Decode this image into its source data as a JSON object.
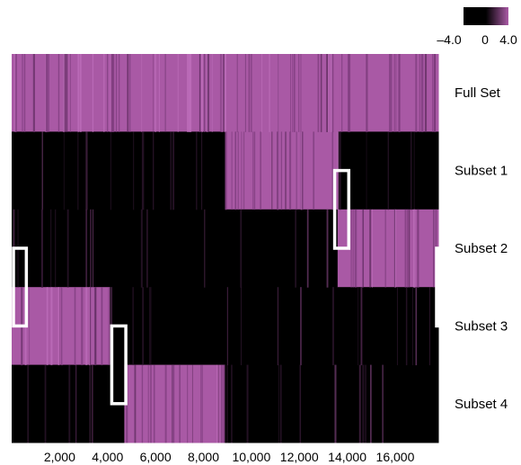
{
  "chart_data": {
    "type": "heatmap",
    "title": "",
    "xlabel": "",
    "ylabel": "",
    "rows": [
      "Full Set",
      "Subset 1",
      "Subset 2",
      "Subset 3",
      "Subset 4"
    ],
    "x_ticks": [
      "2,000",
      "4,000",
      "6,000",
      "8,000",
      "10,000",
      "12,000",
      "14,000",
      "16,000"
    ],
    "x_tick_values": [
      2000,
      4000,
      6000,
      8000,
      10000,
      12000,
      14000,
      16000
    ],
    "xlim": [
      0,
      17800
    ],
    "color_scale": {
      "min": -4.0,
      "max": 4.0,
      "low_color": "#000000",
      "mid_color": "#000000",
      "high_color": "#a959a5"
    },
    "legend_labels": [
      "–4.0",
      "0",
      "4.0"
    ],
    "grid": false,
    "legend_position": "top-right",
    "segments": [
      {
        "row": "Full Set",
        "start": 0,
        "end": 17800,
        "value": 4.0
      },
      {
        "row": "Subset 1",
        "start": 0,
        "end": 8900,
        "value": -4.0
      },
      {
        "row": "Subset 1",
        "start": 8900,
        "end": 13600,
        "value": 4.0
      },
      {
        "row": "Subset 1",
        "start": 13600,
        "end": 17800,
        "value": -4.0
      },
      {
        "row": "Subset 2",
        "start": 0,
        "end": 13600,
        "value": -4.0
      },
      {
        "row": "Subset 2",
        "start": 13600,
        "end": 17800,
        "value": 4.0
      },
      {
        "row": "Subset 3",
        "start": 0,
        "end": 4100,
        "value": 4.0
      },
      {
        "row": "Subset 3",
        "start": 4100,
        "end": 17800,
        "value": -4.0
      },
      {
        "row": "Subset 4",
        "start": 0,
        "end": 4700,
        "value": -4.0
      },
      {
        "row": "Subset 4",
        "start": 4700,
        "end": 8900,
        "value": 4.0
      },
      {
        "row": "Subset 4",
        "start": 8900,
        "end": 17800,
        "value": -4.0
      }
    ],
    "highlight_boxes": [
      {
        "x_start": 0,
        "x_end": 650,
        "rows": [
          "Subset 2",
          "Subset 3"
        ],
        "color": "#ffffff"
      },
      {
        "x_start": 4100,
        "x_end": 4800,
        "rows": [
          "Subset 3",
          "Subset 4"
        ],
        "color": "#ffffff"
      },
      {
        "x_start": 13400,
        "x_end": 14100,
        "rows": [
          "Subset 1",
          "Subset 2"
        ],
        "color": "#ffffff"
      },
      {
        "x_start": 17650,
        "x_end": 17800,
        "rows": [
          "Subset 2",
          "Subset 3"
        ],
        "color": "#ffffff"
      }
    ]
  }
}
